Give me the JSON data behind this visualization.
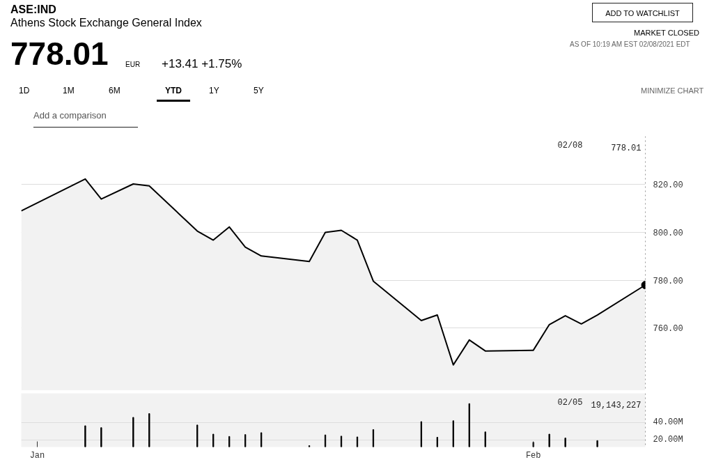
{
  "chart_data": [
    {
      "type": "area",
      "title": "ASE:IND",
      "subtitle": "Athens Stock Exchange General Index",
      "x": [
        "2020-12-31",
        "2021-01-04",
        "2021-01-05",
        "2021-01-07",
        "2021-01-08",
        "2021-01-11",
        "2021-01-12",
        "2021-01-13",
        "2021-01-14",
        "2021-01-15",
        "2021-01-18",
        "2021-01-19",
        "2021-01-20",
        "2021-01-21",
        "2021-01-22",
        "2021-01-25",
        "2021-01-26",
        "2021-01-27",
        "2021-01-28",
        "2021-01-29",
        "2021-02-01",
        "2021-02-02",
        "2021-02-03",
        "2021-02-04",
        "2021-02-05",
        "2021-02-08"
      ],
      "series": [
        {
          "color": "#000000",
          "values": [
            808.9,
            822.2,
            813.8,
            820.1,
            819.3,
            800.5,
            796.7,
            802.2,
            793.8,
            790.1,
            787.8,
            799.9,
            800.8,
            796.7,
            779.6,
            763.2,
            765.5,
            744.7,
            755.1,
            750.5,
            750.8,
            761.5,
            765.2,
            761.8,
            765.5,
            778.0
          ]
        }
      ],
      "xlim": [
        "2020-12-31",
        "2021-02-08"
      ],
      "ylim": [
        734,
        840
      ],
      "yticks": [
        {
          "value": 760,
          "label": "760.00"
        },
        {
          "value": 780,
          "label": "780.00"
        },
        {
          "value": 800,
          "label": "800.00"
        },
        {
          "value": 820,
          "label": "820.00"
        }
      ],
      "tick_labels": "y",
      "grid": "y",
      "ref_lines": [
        {
          "axis": "x",
          "value": "2021-02-08",
          "label": null,
          "line_style": "dotted",
          "color": "#333333"
        }
      ],
      "annotations": [
        "778.01",
        "EUR",
        "+13.41 +1.75%",
        "ADD TO WATCHLIST",
        "MARKET CLOSED",
        "AS OF 10:19 AM EST 02/08/2021 EDT",
        "1D",
        "1M",
        "6M",
        "YTD",
        "1Y",
        "5Y",
        "MINIMIZE CHART",
        "Add a comparison",
        "02/08",
        "778.01"
      ]
    },
    {
      "type": "bar",
      "x": [
        "2021-01-04",
        "2021-01-05",
        "2021-01-07",
        "2021-01-08",
        "2021-01-11",
        "2021-01-12",
        "2021-01-13",
        "2021-01-14",
        "2021-01-15",
        "2021-01-18",
        "2021-01-19",
        "2021-01-20",
        "2021-01-21",
        "2021-01-22",
        "2021-01-25",
        "2021-01-26",
        "2021-01-27",
        "2021-01-28",
        "2021-01-29",
        "2021-02-01",
        "2021-02-02",
        "2021-02-03",
        "2021-02-05"
      ],
      "series": [
        {
          "color": "#000000",
          "values": [
            36.3,
            34.1,
            46.0,
            50.4,
            37.2,
            26.6,
            23.9,
            26.1,
            28.3,
            13.3,
            25.7,
            24.3,
            23.4,
            31.9,
            41.1,
            23.0,
            42.1,
            61.9,
            29.2,
            17.2,
            26.6,
            22.1,
            19.1
          ]
        }
      ],
      "xlim": [
        "2020-12-31",
        "2021-02-08"
      ],
      "ylim": [
        11.7,
        73.8
      ],
      "xticks": [
        {
          "value": "2021-01-01",
          "label": "Jan"
        },
        {
          "value": "2021-02-01",
          "label": "Feb"
        }
      ],
      "yticks": [
        {
          "value": 20,
          "label": "20.00M"
        },
        {
          "value": 40,
          "label": "40.00M"
        }
      ],
      "grid": "y",
      "ref_lines": [
        {
          "axis": "x",
          "value": "2021-02-08",
          "label": null,
          "line_style": "dotted",
          "color": "#333333"
        }
      ],
      "annotations": [
        "02/05",
        "19,143,227"
      ]
    }
  ]
}
